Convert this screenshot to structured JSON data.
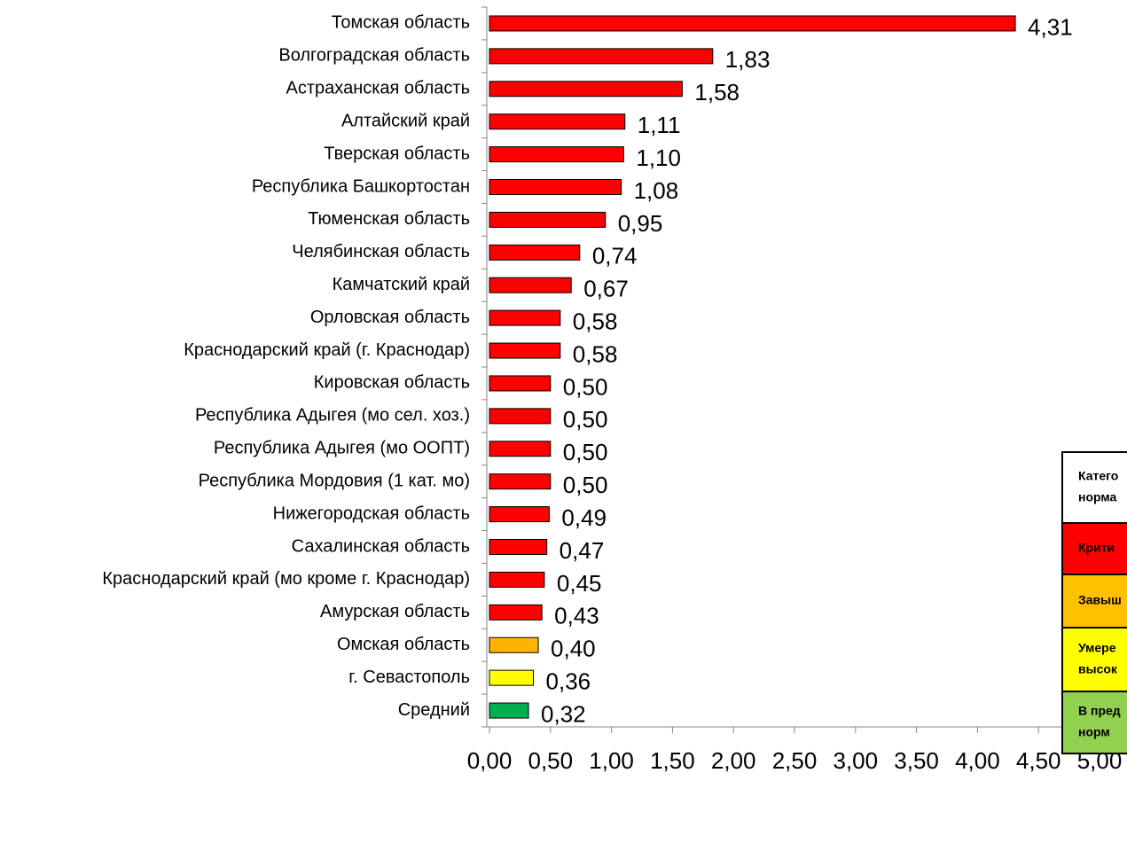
{
  "chart_data": {
    "type": "barh",
    "categories": [
      "Томская область",
      "Волгоградская область",
      "Астраханская область",
      "Алтайский край",
      "Тверская область",
      "Республика Башкортостан",
      "Тюменская область",
      "Челябинская область",
      "Камчатский край",
      "Орловская область",
      "Краснодарский край (г. Краснодар)",
      "Кировская область",
      "Республика Адыгея (мо сел. хоз.)",
      "Республика Адыгея (мо ООПТ)",
      "Республика Мордовия (1 кат. мо)",
      "Нижегородская область",
      "Сахалинская область",
      "Краснодарский край (мо кроме г. Краснодар)",
      "Амурская область",
      "Омская область",
      "г. Севастополь",
      "Средний"
    ],
    "values": [
      4.31,
      1.83,
      1.58,
      1.11,
      1.1,
      1.08,
      0.95,
      0.74,
      0.67,
      0.58,
      0.58,
      0.5,
      0.5,
      0.5,
      0.5,
      0.49,
      0.47,
      0.45,
      0.43,
      0.4,
      0.36,
      0.32
    ],
    "value_labels": [
      "4,31",
      "1,83",
      "1,58",
      "1,11",
      "1,10",
      "1,08",
      "0,95",
      "0,74",
      "0,67",
      "0,58",
      "0,58",
      "0,50",
      "0,50",
      "0,50",
      "0,50",
      "0,49",
      "0,47",
      "0,45",
      "0,43",
      "0,40",
      "0,36",
      "0,32"
    ],
    "colors": [
      "#ff0000",
      "#ff0000",
      "#ff0000",
      "#ff0000",
      "#ff0000",
      "#ff0000",
      "#ff0000",
      "#ff0000",
      "#ff0000",
      "#ff0000",
      "#ff0000",
      "#ff0000",
      "#ff0000",
      "#ff0000",
      "#ff0000",
      "#ff0000",
      "#ff0000",
      "#ff0000",
      "#ff0000",
      "#ffb400",
      "#ffff00",
      "#00b050"
    ],
    "xlim": [
      0,
      5
    ],
    "xticks": [
      {
        "value": 0,
        "label": "0,00"
      },
      {
        "value": 0.5,
        "label": "0,50"
      },
      {
        "value": 1,
        "label": "1,00"
      },
      {
        "value": 1.5,
        "label": "1,50"
      },
      {
        "value": 2,
        "label": "2,00"
      },
      {
        "value": 2.5,
        "label": "2,50"
      },
      {
        "value": 3,
        "label": "3,00"
      },
      {
        "value": 3.5,
        "label": "3,50"
      },
      {
        "value": 4,
        "label": "4,00"
      },
      {
        "value": 4.5,
        "label": "4,50"
      },
      {
        "value": 5,
        "label": "5,00"
      }
    ],
    "legend_table": [
      {
        "lines": [
          "Катего",
          "норма"
        ],
        "color": "#ffffff"
      },
      {
        "lines": [
          "Крити"
        ],
        "color": "#ff0000"
      },
      {
        "lines": [
          "Завыш"
        ],
        "color": "#ffc000"
      },
      {
        "lines": [
          "Умере",
          "высок"
        ],
        "color": "#ffff00"
      },
      {
        "lines": [
          "В пред",
          "норм"
        ],
        "color": "#92d050"
      }
    ]
  }
}
